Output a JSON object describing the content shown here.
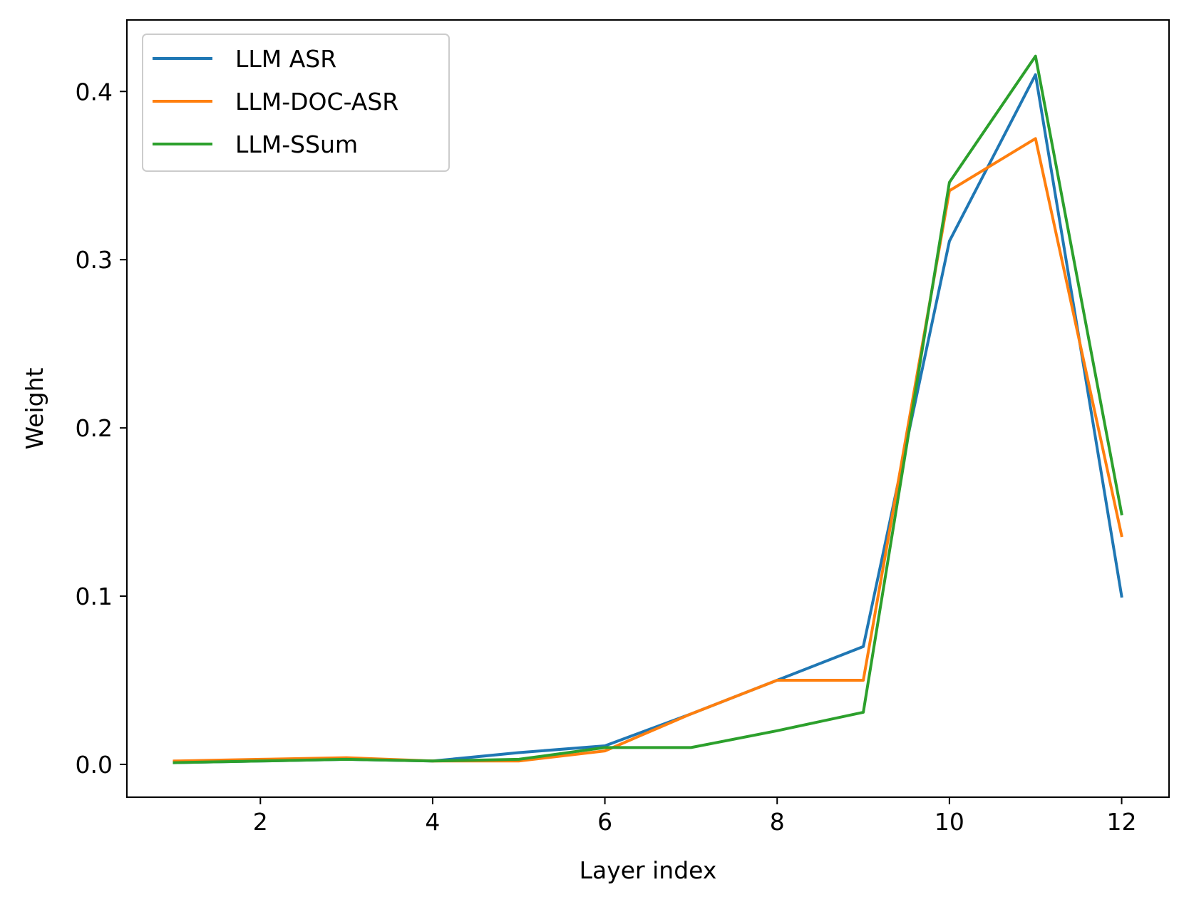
{
  "chart_data": {
    "type": "line",
    "title": "",
    "xlabel": "Layer index",
    "ylabel": "Weight",
    "x": [
      1,
      2,
      3,
      4,
      5,
      6,
      7,
      8,
      9,
      10,
      11,
      12
    ],
    "xlim": [
      0.45,
      12.55
    ],
    "ylim": [
      -0.0195,
      0.4425
    ],
    "xticks": [
      2,
      4,
      6,
      8,
      10,
      12
    ],
    "yticks": [
      0.0,
      0.1,
      0.2,
      0.3,
      0.4
    ],
    "xtick_labels": [
      "2",
      "4",
      "6",
      "8",
      "10",
      "12"
    ],
    "ytick_labels": [
      "0.0",
      "0.1",
      "0.2",
      "0.3",
      "0.4"
    ],
    "grid": false,
    "legend_position": "top-left",
    "series": [
      {
        "name": "LLM ASR",
        "color": "#1f77b4",
        "values": [
          0.001,
          0.002,
          0.003,
          0.002,
          0.007,
          0.011,
          0.03,
          0.05,
          0.07,
          0.311,
          0.41,
          0.1
        ]
      },
      {
        "name": "LLM-DOC-ASR",
        "color": "#ff7f0e",
        "values": [
          0.002,
          0.003,
          0.004,
          0.002,
          0.002,
          0.008,
          0.03,
          0.05,
          0.05,
          0.341,
          0.372,
          0.136
        ]
      },
      {
        "name": "LLM-SSum",
        "color": "#2ca02c",
        "values": [
          0.001,
          0.002,
          0.003,
          0.002,
          0.003,
          0.01,
          0.01,
          0.02,
          0.031,
          0.346,
          0.421,
          0.149
        ]
      }
    ]
  }
}
